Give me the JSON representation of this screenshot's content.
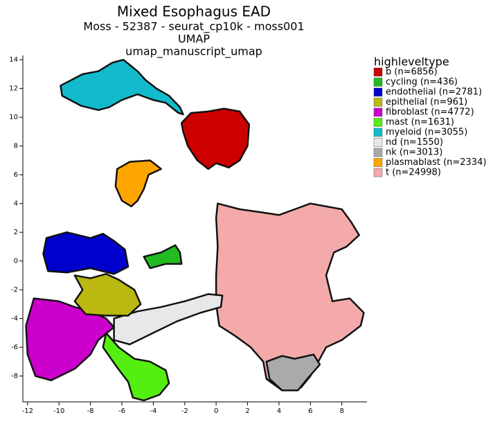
{
  "chart_data": {
    "type": "area",
    "title": "Mixed Esophagus EAD",
    "subtitle": "Moss - 52387 - seurat_cp10k - moss001",
    "subtitle2": "UMAP",
    "subtitle3": "umap_manuscript_umap",
    "legend_title": "highleveltype",
    "legend": "right",
    "xlim": [
      -12.3,
      9.6
    ],
    "ylim": [
      -9.8,
      14.3
    ],
    "xticks": [
      -12,
      -10,
      -8,
      -6,
      -4,
      -2,
      0,
      2,
      4,
      6,
      8
    ],
    "yticks": [
      -8,
      -6,
      -4,
      -2,
      0,
      2,
      4,
      6,
      8,
      10,
      12,
      14
    ],
    "series": [
      {
        "name": "b (n=6856)",
        "color": "#cc0000",
        "x": [
          -2.2,
          -1.6,
          -0.5,
          0.5,
          1.5,
          2.1,
          2.0,
          1.5,
          0.8,
          0,
          -0.5,
          -1.2,
          -1.8,
          -2.1
        ],
        "y": [
          9.6,
          10.3,
          10.4,
          10.6,
          10.4,
          9.5,
          8,
          7,
          6.5,
          6.8,
          6.4,
          7,
          8,
          9
        ]
      },
      {
        "name": "cycling (n=436)",
        "color": "#22bb22",
        "x": [
          -4.6,
          -3.5,
          -2.6,
          -2.3,
          -2.2,
          -3.2,
          -4.2
        ],
        "y": [
          0.3,
          0.6,
          1.1,
          0.6,
          -0.2,
          -0.2,
          -0.5
        ]
      },
      {
        "name": "endothelial (n=2781)",
        "color": "#0000cc",
        "x": [
          -10.8,
          -9.5,
          -8,
          -7.2,
          -6.5,
          -5.8,
          -5.6,
          -6.5,
          -8,
          -9.5,
          -10.7,
          -11
        ],
        "y": [
          1.6,
          2.0,
          1.6,
          1.9,
          1.4,
          0.8,
          -0.4,
          -0.9,
          -0.5,
          -0.8,
          -0.7,
          0.5
        ]
      },
      {
        "name": "epithelial (n=961)",
        "color": "#bbb811",
        "x": [
          -9,
          -8,
          -7,
          -6.2,
          -5.2,
          -4.8,
          -5.6,
          -7,
          -8.3,
          -9,
          -8.5
        ],
        "y": [
          -1,
          -1.2,
          -0.9,
          -1.3,
          -2,
          -3,
          -3.8,
          -3.8,
          -3.7,
          -2.8,
          -2
        ]
      },
      {
        "name": "fibroblast (n=4772)",
        "color": "#cc00cc",
        "x": [
          -11.6,
          -10,
          -9,
          -8,
          -7,
          -6.5,
          -7.5,
          -8,
          -9,
          -10.5,
          -11.5,
          -12,
          -12.1
        ],
        "y": [
          -2.6,
          -2.8,
          -3.2,
          -3.5,
          -4,
          -4.6,
          -5.5,
          -6.5,
          -7.5,
          -8.3,
          -8,
          -6.5,
          -4.5
        ]
      },
      {
        "name": "mast (n=1631)",
        "color": "#55ee11",
        "x": [
          -7,
          -6.2,
          -5.2,
          -4.2,
          -3.2,
          -3,
          -3.6,
          -4.6,
          -5.3,
          -5.6,
          -6.3,
          -7.2
        ],
        "y": [
          -5,
          -6,
          -6.8,
          -7,
          -7.6,
          -8.5,
          -9.3,
          -9.7,
          -9.5,
          -8.4,
          -7.4,
          -6
        ]
      },
      {
        "name": "myeloid (n=3055)",
        "color": "#11bbcc",
        "x": [
          -9.9,
          -8.5,
          -7.5,
          -6.6,
          -5.9,
          -5,
          -4.5,
          -3.8,
          -3,
          -2.3,
          -2.1,
          -2.4,
          -3.2,
          -4,
          -5,
          -6,
          -6.8,
          -7.5,
          -8.6,
          -9.8
        ],
        "y": [
          12.2,
          13,
          13.2,
          13.8,
          14,
          13.2,
          12.6,
          12,
          11.5,
          10.7,
          10.2,
          10.3,
          11,
          11.2,
          11.6,
          11.2,
          10.7,
          10.5,
          10.8,
          11.5
        ]
      },
      {
        "name": "nd (n=1550)",
        "color": "#e8e8e8",
        "x": [
          -6.5,
          -5,
          -3.5,
          -2,
          -0.5,
          0.4,
          0.3,
          -1,
          -2.5,
          -4,
          -5.5,
          -6.5
        ],
        "y": [
          -4,
          -3.5,
          -3.2,
          -2.8,
          -2.3,
          -2.4,
          -3.2,
          -3.6,
          -4.2,
          -5,
          -5.8,
          -5.5
        ]
      },
      {
        "name": "nk (n=3013)",
        "color": "#aaaaaa",
        "x": [
          3.2,
          4.2,
          5,
          6.2,
          6.6,
          5.8,
          5.2,
          4.2,
          3.4
        ],
        "y": [
          -7,
          -6.6,
          -6.8,
          -6.5,
          -7.2,
          -8.2,
          -9,
          -9,
          -8.2
        ]
      },
      {
        "name": "plasmablast (n=2334)",
        "color": "#ffa500",
        "x": [
          -6.3,
          -5.5,
          -4.2,
          -3.5,
          -4.3,
          -4.6,
          -5,
          -5.4,
          -6,
          -6.4
        ],
        "y": [
          6.4,
          6.9,
          7,
          6.4,
          6,
          5,
          4.2,
          3.8,
          4.2,
          5.2
        ]
      },
      {
        "name": "t (n=24998)",
        "color": "#f4aaaa",
        "x": [
          0.1,
          1.5,
          2.8,
          4,
          5,
          6,
          7,
          8,
          8.6,
          9.1,
          8.3,
          7.5,
          7,
          7.4,
          8.5,
          9.4,
          9.2,
          8,
          7,
          6.5,
          6,
          5.4,
          4.2,
          3.2,
          3,
          2.2,
          1.2,
          0.2,
          0,
          0,
          0.1,
          0
        ],
        "y": [
          4,
          3.6,
          3.4,
          3.2,
          3.6,
          4,
          3.8,
          3.6,
          2.7,
          1.8,
          1,
          0.6,
          -1,
          -2.8,
          -2.6,
          -3.6,
          -4.5,
          -5.5,
          -6,
          -7,
          -8,
          -8.8,
          -9,
          -8.2,
          -7,
          -6,
          -5.2,
          -4.5,
          -3,
          -1,
          1,
          3
        ]
      }
    ]
  }
}
